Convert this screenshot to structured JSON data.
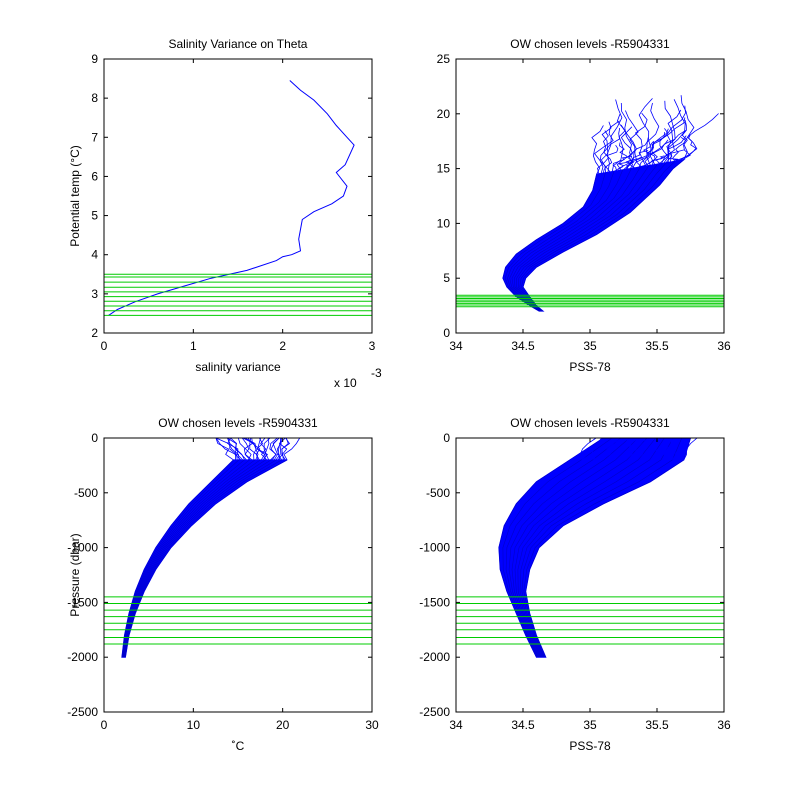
{
  "colors": {
    "profile": "#0000ff",
    "levels": "#00cc00",
    "axes": "#000000"
  },
  "chart_data": [
    {
      "id": "p1",
      "type": "line",
      "title": "Salinity Variance on Theta",
      "xlabel": "salinity variance",
      "ylabel": "Potential temp (°C)",
      "xlim": [
        0,
        3
      ],
      "ylim": [
        2,
        9
      ],
      "xticks": [
        0,
        1,
        2,
        3
      ],
      "yticks": [
        2,
        3,
        4,
        5,
        6,
        7,
        8,
        9
      ],
      "xexponent_base": "x 10",
      "xexponent_power": "-3",
      "grid": false,
      "series": [
        {
          "x": [
            2.08,
            2.2,
            2.35,
            2.5,
            2.6,
            2.72,
            2.8,
            2.7,
            2.6,
            2.72,
            2.68,
            2.55,
            2.35,
            2.22,
            2.18,
            2.2,
            2.1,
            2.0,
            1.93,
            1.6,
            1.2,
            0.9,
            0.6,
            0.35,
            0.15,
            0.05
          ],
          "y": [
            8.45,
            8.2,
            7.95,
            7.6,
            7.3,
            7.0,
            6.8,
            6.3,
            6.1,
            5.75,
            5.5,
            5.3,
            5.1,
            4.9,
            4.4,
            4.1,
            4.0,
            3.95,
            3.85,
            3.6,
            3.4,
            3.2,
            3.0,
            2.8,
            2.6,
            2.45
          ]
        }
      ],
      "levels": [
        2.45,
        2.57,
        2.69,
        2.81,
        2.93,
        3.05,
        3.17,
        3.3,
        3.43,
        3.5
      ]
    },
    {
      "id": "p2",
      "type": "line",
      "title": "OW chosen levels -R5904331",
      "xlabel": "PSS-78",
      "ylabel": "",
      "xlim": [
        34,
        36
      ],
      "ylim": [
        0,
        25
      ],
      "xticks": [
        34,
        34.5,
        35,
        35.5,
        36
      ],
      "yticks": [
        0,
        5,
        10,
        15,
        20,
        25
      ],
      "grid": false,
      "envelope": {
        "left": {
          "x": [
            34.62,
            34.55,
            34.45,
            34.38,
            34.35,
            34.37,
            34.45,
            34.6,
            34.8,
            34.95,
            35.02,
            35.05
          ],
          "y": [
            2.0,
            2.5,
            3.3,
            4.2,
            5.0,
            6.0,
            7.2,
            8.5,
            10.0,
            11.5,
            13.0,
            14.5
          ]
        },
        "right": {
          "x": [
            34.65,
            34.6,
            34.55,
            34.5,
            34.52,
            34.6,
            34.8,
            35.05,
            35.3,
            35.52,
            35.62,
            35.7
          ],
          "y": [
            2.0,
            2.5,
            3.3,
            4.2,
            5.0,
            6.0,
            7.4,
            9.0,
            11.0,
            13.5,
            15.0,
            15.8
          ]
        },
        "top_ymax": 22
      },
      "levels": [
        2.4,
        2.55,
        2.7,
        2.85,
        3.0,
        3.15,
        3.3,
        3.45
      ]
    },
    {
      "id": "p3",
      "type": "line",
      "title": "OW chosen levels -R5904331",
      "xlabel": "˚C",
      "ylabel": "Pressure (dbar)",
      "xlim": [
        0,
        30
      ],
      "ylim": [
        -2500,
        0
      ],
      "xticks": [
        0,
        10,
        20,
        30
      ],
      "yticks": [
        0,
        -500,
        -1000,
        -1500,
        -2000,
        -2500
      ],
      "grid": false,
      "envelope": {
        "left": {
          "x": [
            2.0,
            2.3,
            2.8,
            3.5,
            4.5,
            5.8,
            7.5,
            9.5,
            12.0,
            14.5
          ],
          "y": [
            -2000,
            -1800,
            -1600,
            -1400,
            -1200,
            -1000,
            -800,
            -600,
            -400,
            -200
          ]
        },
        "right": {
          "x": [
            2.4,
            2.8,
            3.5,
            4.5,
            5.8,
            7.5,
            9.8,
            12.5,
            16.0,
            20.5
          ],
          "y": [
            -2000,
            -1800,
            -1600,
            -1400,
            -1200,
            -1000,
            -800,
            -600,
            -400,
            -200
          ]
        },
        "surface_x": [
          12.0,
          22.0
        ]
      },
      "levels": [
        -1450,
        -1510,
        -1570,
        -1630,
        -1690,
        -1750,
        -1820,
        -1880
      ]
    },
    {
      "id": "p4",
      "type": "line",
      "title": "OW chosen levels -R5904331",
      "xlabel": "PSS-78",
      "ylabel": "",
      "xlim": [
        34,
        36
      ],
      "ylim": [
        -2500,
        0
      ],
      "xticks": [
        34,
        34.5,
        35,
        35.5,
        36
      ],
      "yticks": [
        0,
        -500,
        -1000,
        -1500,
        -2000,
        -2500
      ],
      "grid": false,
      "envelope": {
        "left": {
          "x": [
            34.6,
            34.52,
            34.45,
            34.38,
            34.33,
            34.32,
            34.36,
            34.45,
            34.6,
            34.85,
            35.1
          ],
          "y": [
            -2000,
            -1800,
            -1600,
            -1400,
            -1200,
            -1000,
            -800,
            -600,
            -400,
            -200,
            0
          ]
        },
        "right": {
          "x": [
            34.67,
            34.6,
            34.55,
            34.52,
            34.55,
            34.62,
            34.8,
            35.1,
            35.45,
            35.7,
            35.75
          ],
          "y": [
            -2000,
            -1800,
            -1600,
            -1400,
            -1200,
            -1000,
            -800,
            -600,
            -400,
            -200,
            0
          ]
        }
      },
      "levels": [
        -1450,
        -1510,
        -1570,
        -1630,
        -1690,
        -1750,
        -1820,
        -1880
      ]
    }
  ]
}
